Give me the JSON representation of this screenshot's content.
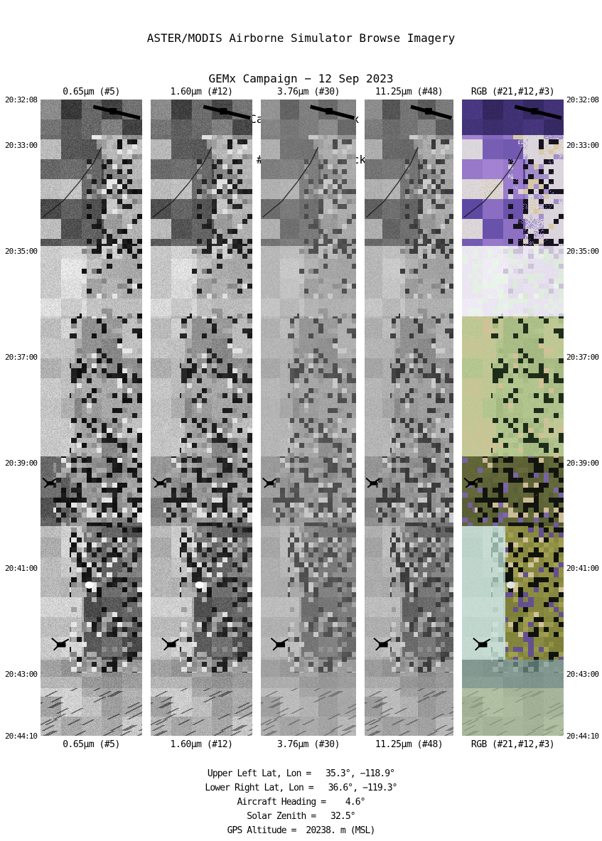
{
  "title": {
    "line1": "ASTER/MODIS Airborne Simulator Browse Imagery",
    "line2": "GEMx Campaign − 12 Sep 2023",
    "line3": "Central California (GEMx CA234)",
    "line4": "Flight #23−912−00 Track #11"
  },
  "strips": [
    {
      "label": "0.65μm (#5)",
      "type": "grayscale"
    },
    {
      "label": "1.60μm (#12)",
      "type": "grayscale"
    },
    {
      "label": "3.76μm (#30)",
      "type": "grayscale"
    },
    {
      "label": "11.25μm (#48)",
      "type": "grayscale"
    },
    {
      "label": "RGB (#21,#12,#3)",
      "type": "rgb"
    }
  ],
  "timeline": {
    "times": [
      "20:32:08",
      "20:33:00",
      "20:35:00",
      "20:37:00",
      "20:39:00",
      "20:41:00",
      "20:43:00",
      "20:44:10"
    ]
  },
  "footer": {
    "lines": [
      "Upper Left Lat, Lon =   35.3°, −118.9°",
      "Lower Right Lat, Lon =   36.6°, −119.3°",
      "Aircraft Heading =    4.6°",
      "Solar Zenith =   32.5°",
      "GPS Altitude =  20238. m (MSL)"
    ]
  },
  "palette": {
    "vegetation_purple": "#7d66c2",
    "farm_tan": "#d2c096",
    "pale_zone": "#d6dcd2",
    "olive": "#8c8c46",
    "mountain_green": "#8f9a78"
  }
}
